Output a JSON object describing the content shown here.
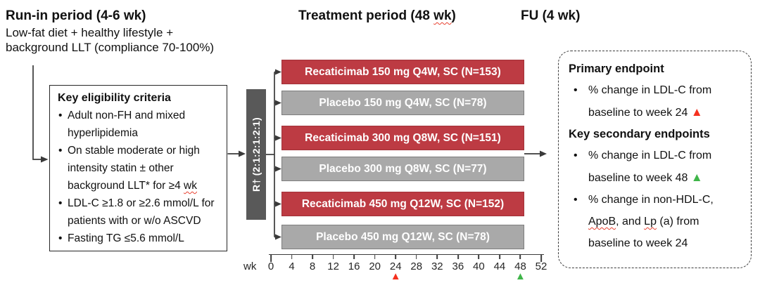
{
  "colors": {
    "drug": "#bd3b43",
    "placebo": "#a9a9a9",
    "randomization_bar": "#595959",
    "red_marker": "#f5311f",
    "green_marker": "#3fb549"
  },
  "headers": {
    "runin_title": "Run-in period (4-6 wk)",
    "runin_sub": [
      "Low-fat diet + healthy lifestyle +",
      "background LLT (compliance 70-100%)"
    ],
    "treatment_title_segs": [
      {
        "t": "Treatment period (48 "
      },
      {
        "t": "wk",
        "sq": true
      },
      {
        "t": ")"
      }
    ],
    "fu_title": "FU (4 wk)"
  },
  "eligibility": {
    "title": "Key eligibility criteria",
    "items": [
      [
        {
          "t": "Adult non-FH and mixed hyperlipidemia"
        }
      ],
      [
        {
          "t": "On stable moderate or high intensity statin ± other background LLT* for ≥4 "
        },
        {
          "t": "wk",
          "sq": true
        }
      ],
      [
        {
          "t": "LDL-C ≥1.8 or ≥2.6 mmol/L for patients with or w/o ASCVD"
        }
      ],
      [
        {
          "t": "Fasting TG ≤5.6 mmol/L"
        }
      ]
    ]
  },
  "randomization": {
    "label": "R† (2:1:2:1:2:1)"
  },
  "arms": [
    {
      "label": "Recaticimab 150 mg Q4W, SC (N=153)",
      "type": "drug"
    },
    {
      "label": "Placebo 150 mg Q4W, SC (N=78)",
      "type": "placebo"
    },
    {
      "label": "Recaticimab 300 mg Q8W, SC (N=151)",
      "type": "drug"
    },
    {
      "label": "Placebo 300 mg Q8W, SC (N=77)",
      "type": "placebo"
    },
    {
      "label": "Recaticimab 450 mg Q12W, SC (N=152)",
      "type": "drug"
    },
    {
      "label": "Placebo 450 mg Q12W, SC (N=78)",
      "type": "placebo"
    }
  ],
  "timeline": {
    "unit_label": "wk",
    "max_week": 52,
    "ticks": [
      0,
      4,
      8,
      12,
      16,
      20,
      24,
      28,
      32,
      36,
      40,
      44,
      48,
      52
    ],
    "markers": [
      {
        "week": 24,
        "color": "red"
      },
      {
        "week": 48,
        "color": "green"
      }
    ]
  },
  "endpoints": {
    "primary_title": "Primary endpoint",
    "primary_items": [
      [
        {
          "t": "% change in LDL-C from baseline to week 24 "
        },
        {
          "tri": "red"
        }
      ]
    ],
    "secondary_title": "Key secondary endpoints",
    "secondary_items": [
      [
        {
          "t": "% change in LDL-C from baseline to week 48 "
        },
        {
          "tri": "green"
        }
      ],
      [
        {
          "t": "% change in non-HDL-C, "
        },
        {
          "t": "ApoB",
          "sq": true
        },
        {
          "t": ", and "
        },
        {
          "t": "Lp",
          "sq": true
        },
        {
          "t": " (a) from baseline to week 24"
        }
      ]
    ]
  }
}
